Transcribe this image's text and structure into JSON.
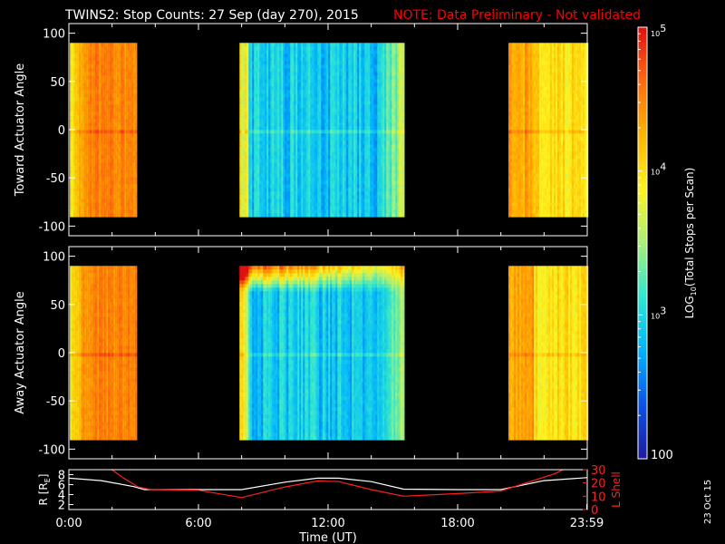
{
  "title": "TWINS2: Stop Counts: 27 Sep (day 270), 2015",
  "note": "NOTE: Data Preliminary - Not validated",
  "date_stamp": "23 Oct 15",
  "colors": {
    "background": "#000000",
    "axes": "#ffffff",
    "note": "#ff0000",
    "r_line": "#ffffff",
    "l_line": "#ff2020",
    "colormap": [
      "#1e1b9e",
      "#0a52e8",
      "#00b4ff",
      "#2ee8d2",
      "#a8f07a",
      "#fff21e",
      "#ffb400",
      "#ff6a10",
      "#e01010"
    ]
  },
  "chart_data": [
    {
      "type": "heatmap",
      "name": "toward",
      "ylabel": "Toward Actuator Angle",
      "ylim": [
        -110,
        110
      ],
      "yticks": [
        "100",
        "50",
        "0",
        "-50",
        "-100"
      ],
      "ytick_values": [
        100,
        50,
        0,
        -50,
        -100
      ],
      "xlim": [
        0,
        24
      ],
      "angle_range": [
        -90,
        90
      ],
      "data_segments": [
        {
          "start_h": 0.05,
          "end_h": 3.1,
          "profile": "hot"
        },
        {
          "start_h": 7.9,
          "end_h": 15.5,
          "profile": "cool"
        },
        {
          "start_h": 20.35,
          "end_h": 24.0,
          "profile": "warm"
        }
      ]
    },
    {
      "type": "heatmap",
      "name": "away",
      "ylabel": "Away Actuator Angle",
      "ylim": [
        -110,
        110
      ],
      "yticks": [
        "100",
        "50",
        "0",
        "-50",
        "-100"
      ],
      "ytick_values": [
        100,
        50,
        0,
        -50,
        -100
      ],
      "xlim": [
        0,
        24
      ],
      "angle_range": [
        -90,
        90
      ],
      "data_segments": [
        {
          "start_h": 0.05,
          "end_h": 3.1,
          "profile": "hot"
        },
        {
          "start_h": 7.9,
          "end_h": 15.5,
          "profile": "cool"
        },
        {
          "start_h": 20.35,
          "end_h": 24.0,
          "profile": "warm"
        }
      ]
    },
    {
      "type": "line",
      "name": "orbit",
      "ylabel_left": "R [R",
      "ylabel_left_sub": "E",
      "ylabel_left_close": "]",
      "ylabel_right": "L Shell",
      "ylim_left": [
        1,
        9
      ],
      "ylim_right": [
        0,
        30
      ],
      "yticks_left": [
        "2",
        "4",
        "6",
        "8"
      ],
      "ytick_values_left": [
        2,
        4,
        6,
        8
      ],
      "yticks_right": [
        "0",
        "10",
        "20",
        "30"
      ],
      "ytick_values_right": [
        0,
        10,
        20,
        30
      ],
      "xlabel": "Time (UT)",
      "xticks": [
        "0:00",
        "6:00",
        "12:00",
        "18:00",
        "23:59"
      ],
      "xtick_values": [
        0,
        6,
        12,
        18,
        23.98
      ],
      "series": [
        {
          "name": "R",
          "axis": "left",
          "x": [
            0,
            1.5,
            3.0,
            3.5,
            6.0,
            8.0,
            10.0,
            11.5,
            12.5,
            14.0,
            15.5,
            18.0,
            20.0,
            22.0,
            23.98
          ],
          "y": [
            7.3,
            6.8,
            5.6,
            5.0,
            5.0,
            5.0,
            6.5,
            7.3,
            7.3,
            6.6,
            5.1,
            5.0,
            5.0,
            6.8,
            7.4
          ]
        },
        {
          "name": "L Shell",
          "axis": "right",
          "x": [
            1.9,
            2.5,
            3.2,
            3.8,
            6.0,
            8.0,
            10.0,
            11.5,
            12.5,
            14.0,
            15.5,
            18.0,
            20.0,
            22.5,
            23.0
          ],
          "y": [
            31,
            24,
            17,
            15,
            14.5,
            9,
            17,
            21.5,
            21,
            15,
            10,
            12,
            14,
            27,
            31
          ]
        }
      ]
    }
  ],
  "colorbar": {
    "label_main": "LOG",
    "label_sub": "10",
    "label_rest": "(Total Stops per Scan)",
    "range_log": [
      2,
      5
    ],
    "ticks": [
      {
        "base": "10",
        "exp": "5",
        "value_log": 5
      },
      {
        "base": "10",
        "exp": "4",
        "value_log": 4
      },
      {
        "base": "10",
        "exp": "3",
        "value_log": 3
      },
      {
        "base": "100",
        "exp": "",
        "value_log": 2
      }
    ]
  }
}
